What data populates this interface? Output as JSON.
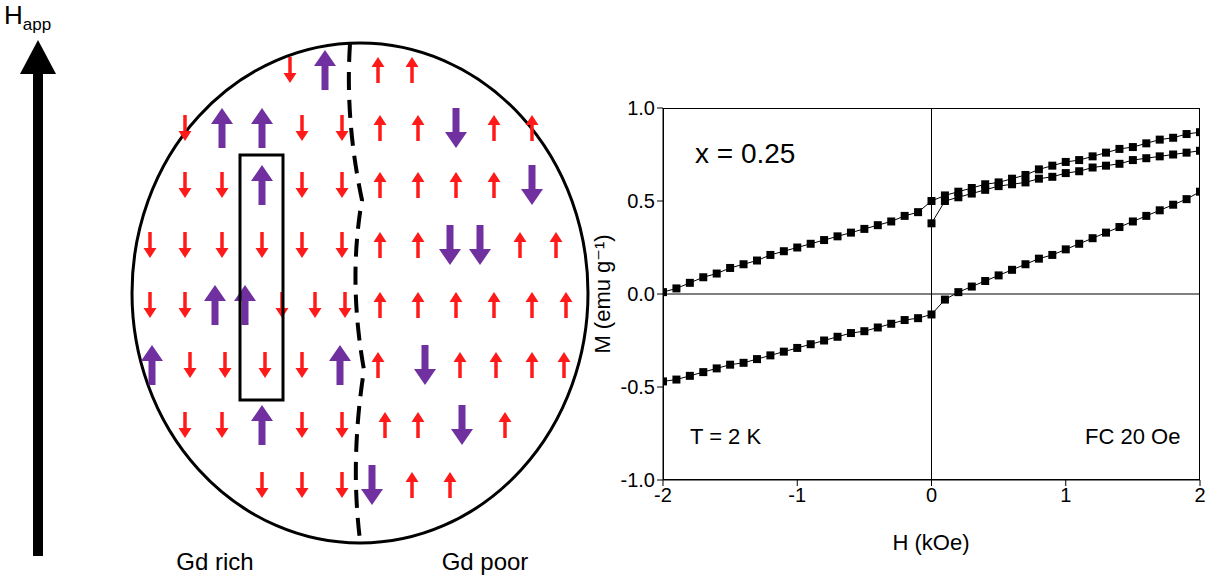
{
  "chart_data": {
    "type": "scatter",
    "x_label": "H (kOe)",
    "y_label": "M (emu g⁻¹)",
    "annotations": [
      "x = 0.25",
      "T = 2 K",
      "FC 20 Oe"
    ],
    "xlim": [
      -2,
      2
    ],
    "xticks": [
      -2,
      -1,
      0,
      1,
      2
    ],
    "ylim": [
      -1,
      1
    ],
    "yticks": [
      {
        "value": -1,
        "label": "-1.0"
      },
      -0.5,
      {
        "value": 0,
        "label": "0.0"
      },
      0.5,
      {
        "value": 1,
        "label": "1.0"
      }
    ],
    "grid": false,
    "series": [
      {
        "color": "#000000",
        "marker": "square",
        "line_style": "solid",
        "x": [
          0.0,
          0.1,
          0.2,
          0.3,
          0.4,
          0.5,
          0.6,
          0.7,
          0.8,
          0.9,
          1.0,
          1.1,
          1.2,
          1.3,
          1.4,
          1.5,
          1.6,
          1.7,
          1.8,
          1.9,
          2.0
        ],
        "values": [
          0.38,
          0.5,
          0.52,
          0.54,
          0.56,
          0.58,
          0.59,
          0.6,
          0.62,
          0.63,
          0.65,
          0.66,
          0.68,
          0.69,
          0.7,
          0.72,
          0.73,
          0.74,
          0.75,
          0.76,
          0.77
        ]
      },
      {
        "color": "#000000",
        "marker": "square",
        "line_style": "solid",
        "x": [
          2.0,
          1.9,
          1.8,
          1.7,
          1.6,
          1.5,
          1.4,
          1.3,
          1.2,
          1.1,
          1.0,
          0.9,
          0.8,
          0.7,
          0.6,
          0.5,
          0.4,
          0.3,
          0.2,
          0.1,
          0.0,
          -0.1,
          -0.2,
          -0.3,
          -0.4,
          -0.5,
          -0.6,
          -0.7,
          -0.8,
          -0.9,
          -1.0,
          -1.1,
          -1.2,
          -1.3,
          -1.4,
          -1.5,
          -1.6,
          -1.7,
          -1.8,
          -1.9,
          -2.0
        ],
        "values": [
          0.87,
          0.86,
          0.84,
          0.83,
          0.81,
          0.79,
          0.78,
          0.76,
          0.74,
          0.72,
          0.71,
          0.69,
          0.67,
          0.64,
          0.62,
          0.6,
          0.59,
          0.57,
          0.55,
          0.53,
          0.5,
          0.44,
          0.42,
          0.39,
          0.37,
          0.35,
          0.33,
          0.31,
          0.29,
          0.27,
          0.25,
          0.23,
          0.21,
          0.18,
          0.16,
          0.14,
          0.11,
          0.09,
          0.06,
          0.03,
          0.01
        ]
      },
      {
        "color": "#000000",
        "marker": "square",
        "line_style": "solid",
        "x": [
          -2.0,
          -1.9,
          -1.8,
          -1.7,
          -1.6,
          -1.5,
          -1.4,
          -1.3,
          -1.2,
          -1.1,
          -1.0,
          -0.9,
          -0.8,
          -0.7,
          -0.6,
          -0.5,
          -0.4,
          -0.3,
          -0.2,
          -0.1,
          0.0,
          0.1,
          0.2,
          0.3,
          0.4,
          0.5,
          0.6,
          0.7,
          0.8,
          0.9,
          1.0,
          1.1,
          1.2,
          1.3,
          1.4,
          1.5,
          1.6,
          1.7,
          1.8,
          1.9,
          2.0
        ],
        "values": [
          -0.47,
          -0.46,
          -0.44,
          -0.42,
          -0.4,
          -0.38,
          -0.37,
          -0.35,
          -0.33,
          -0.31,
          -0.29,
          -0.27,
          -0.25,
          -0.23,
          -0.21,
          -0.2,
          -0.18,
          -0.16,
          -0.14,
          -0.13,
          -0.11,
          -0.03,
          0.01,
          0.04,
          0.07,
          0.1,
          0.13,
          0.16,
          0.19,
          0.21,
          0.24,
          0.27,
          0.3,
          0.33,
          0.36,
          0.39,
          0.42,
          0.45,
          0.48,
          0.51,
          0.55
        ]
      }
    ]
  },
  "diagram": {
    "field_label": "H",
    "field_label_subscript": "app",
    "regions": [
      "Gd rich",
      "Gd poor"
    ]
  }
}
